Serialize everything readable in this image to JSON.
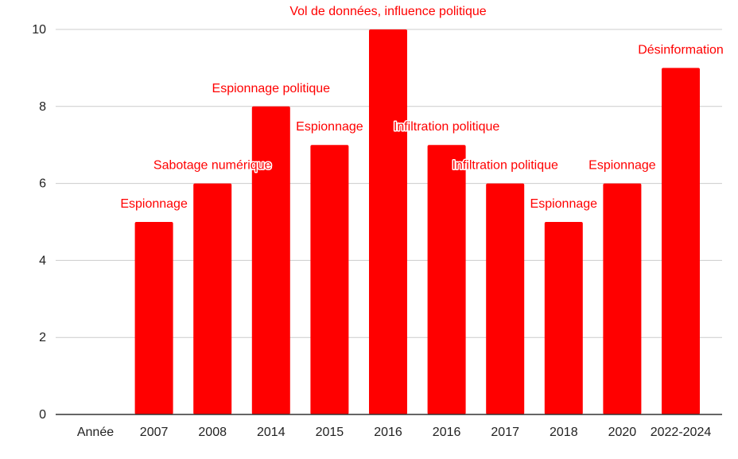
{
  "chart_data": {
    "type": "bar",
    "categories": [
      "Année",
      "2007",
      "2008",
      "2014",
      "2015",
      "2016",
      "2016",
      "2017",
      "2018",
      "2020",
      "2022-2024"
    ],
    "values": [
      null,
      5,
      6,
      8,
      7,
      10,
      7,
      6,
      5,
      6,
      9
    ],
    "data_labels": [
      "",
      "Espionnage",
      "Sabotage numérique",
      "Espionnage politique",
      "Espionnage",
      "Vol de données, influence politique",
      "Infiltration politique",
      "Infiltration politique",
      "Espionnage",
      "Espionnage",
      "Désinformation"
    ],
    "y_ticks": [
      "0",
      "2",
      "4",
      "6",
      "8",
      "10"
    ],
    "ylim": [
      0,
      10
    ],
    "grid": true,
    "legend": "none",
    "title": "",
    "xlabel": "",
    "ylabel": "",
    "colors": {
      "bar": "#ff0000",
      "label": "#ff0000",
      "grid": "#cccccc",
      "axis": "#333333",
      "text": "#222222"
    }
  }
}
